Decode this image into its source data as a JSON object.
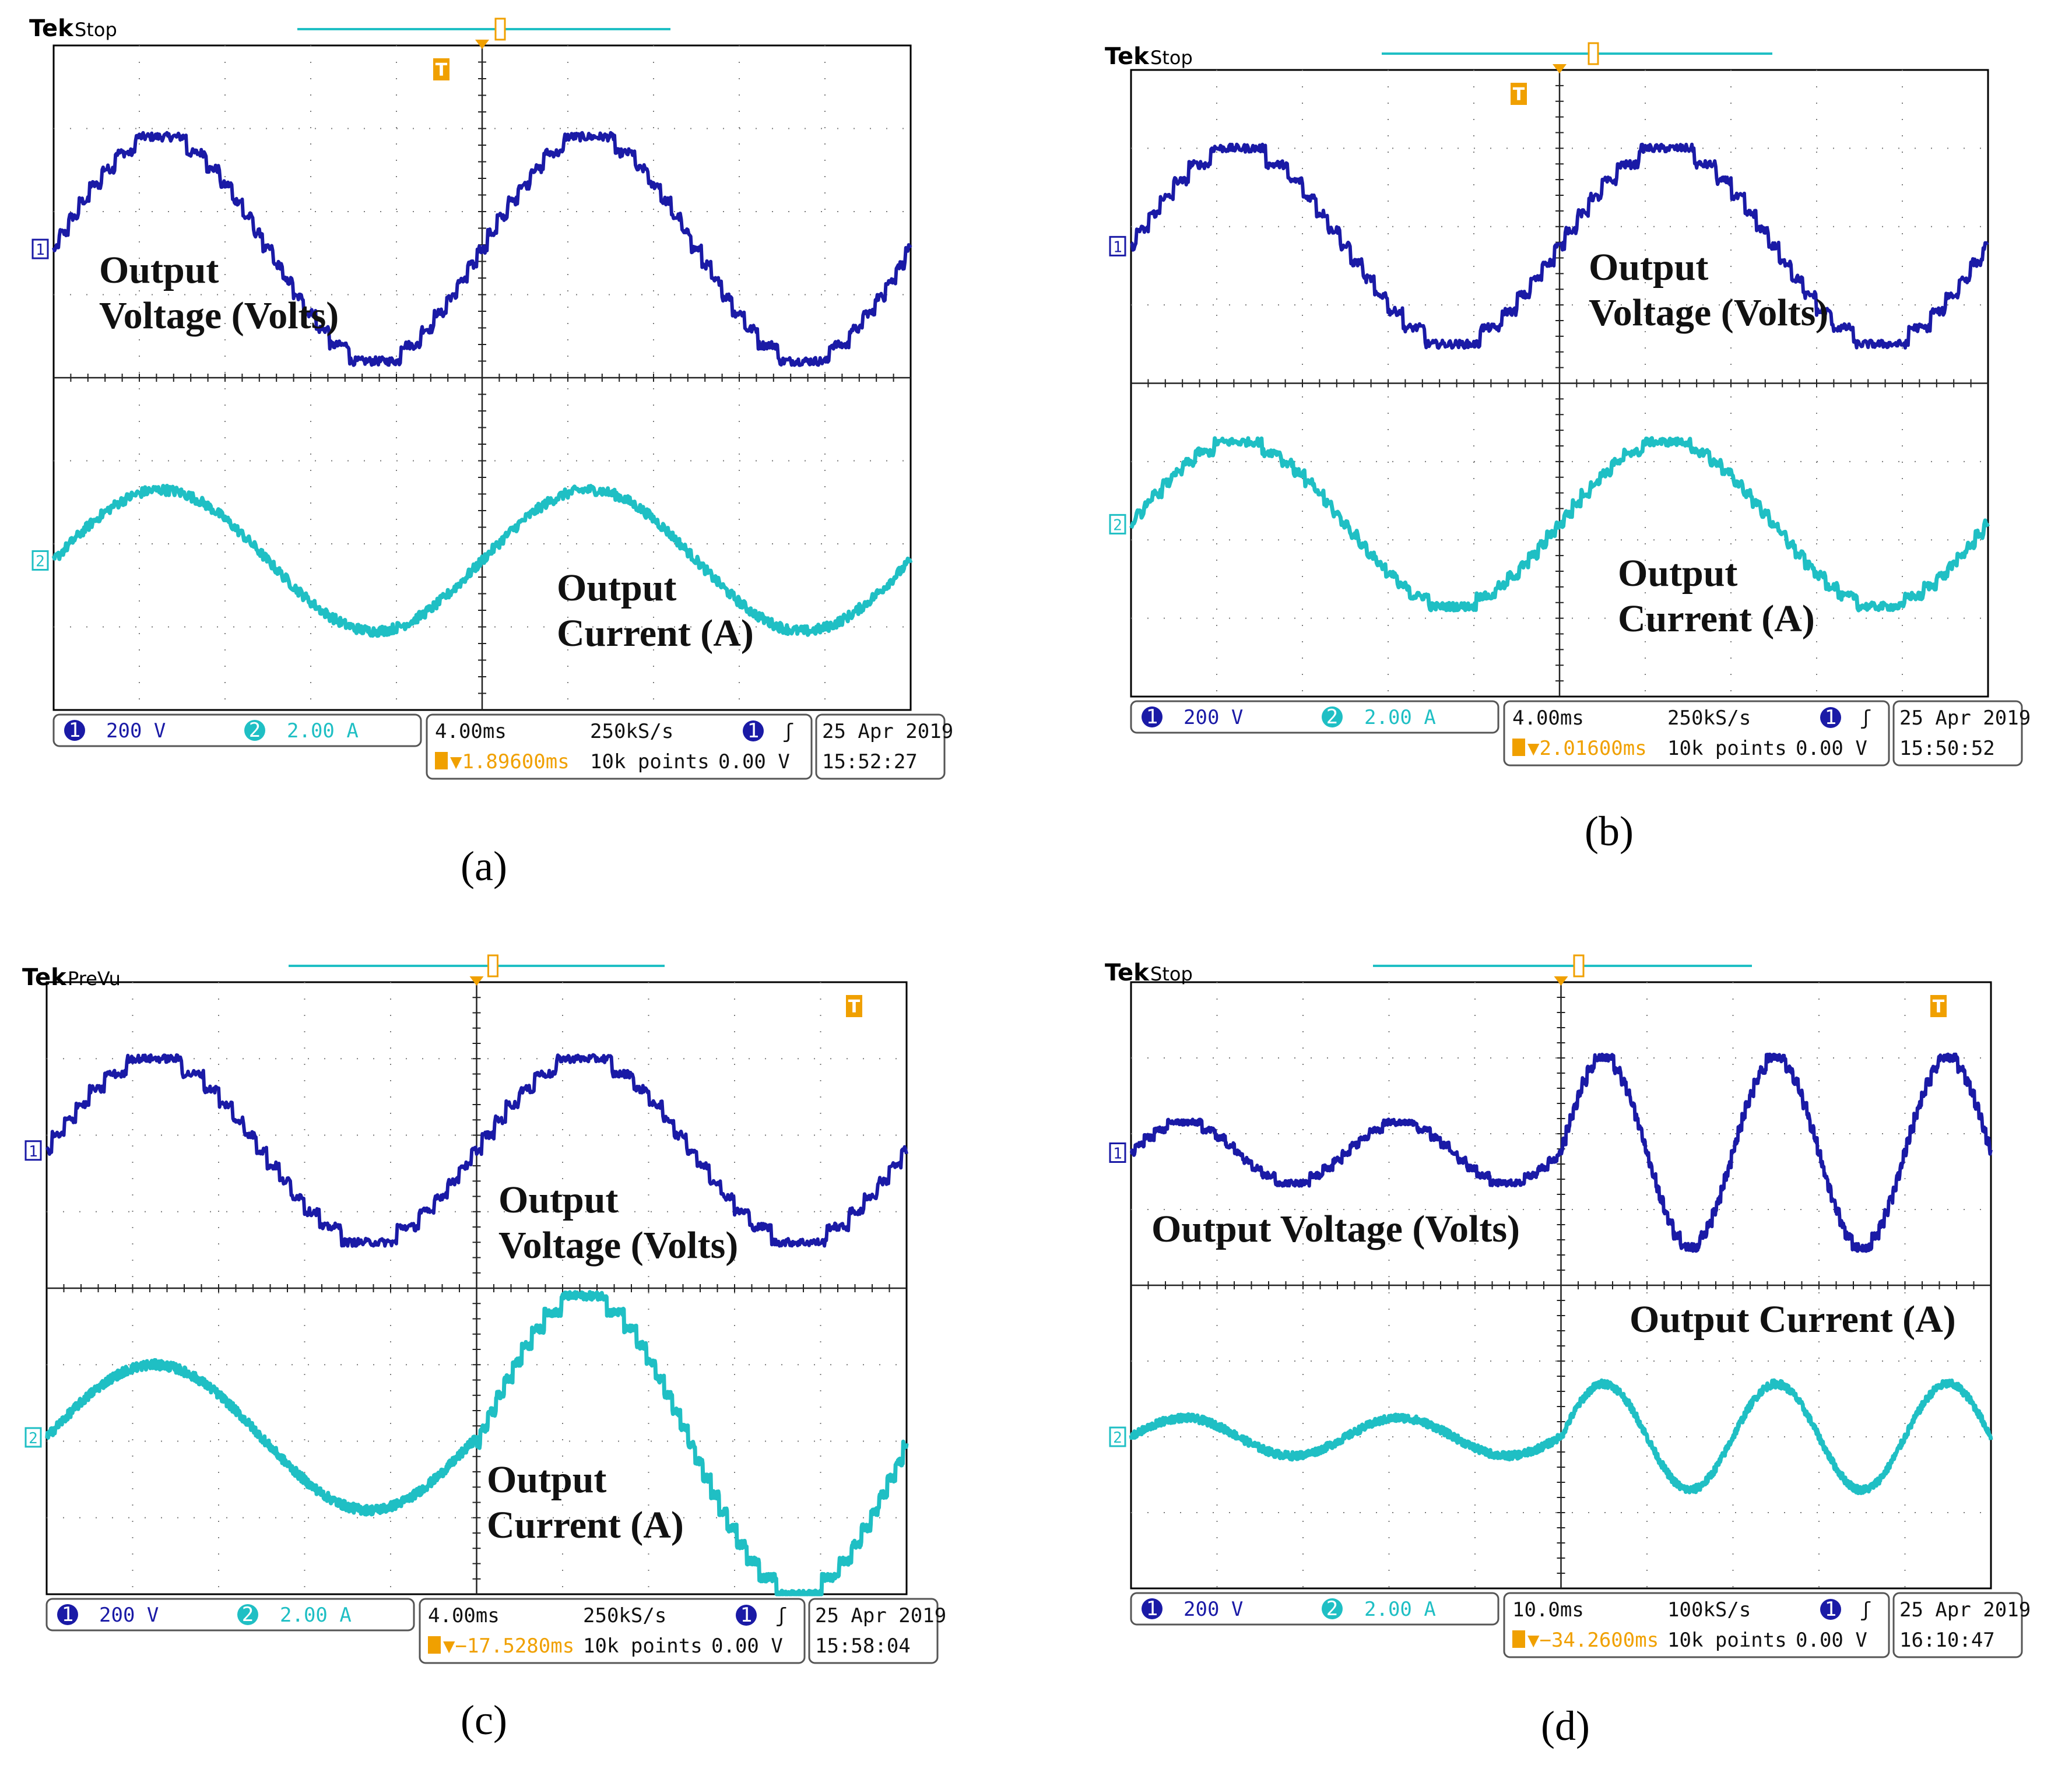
{
  "figure": {
    "colors": {
      "ch1": "#1a1aa6",
      "ch2": "#1fbfc4",
      "trigger": "#f0a000",
      "grid": "#7a7a7a",
      "text": "#111111"
    }
  },
  "chart_data": [
    {
      "type": "line",
      "panel_label": "(a)",
      "title_brand": "Tek",
      "title_status": "Stop",
      "ch1_marker": "1",
      "ch2_marker": "2",
      "trigger_marker": "T",
      "x_divisions": 10,
      "y_divisions": 8,
      "xlim_ms": [
        -20,
        20
      ],
      "series": [
        {
          "name": "Output Voltage (Volts)",
          "label_lines": [
            "Output",
            "Voltage (Volts)"
          ],
          "channel": 1,
          "color": "#1a1aa6",
          "scale": "200 V",
          "frequency_hz": 50,
          "amplitude_div": 1.35,
          "offset_div": 1.55,
          "levels": 7,
          "phase_rad": 0.0,
          "jitter": 0.05
        },
        {
          "name": "Output Current (A)",
          "label_lines": [
            "Output",
            "Current (A)"
          ],
          "channel": 2,
          "color": "#1fbfc4",
          "scale": "2.00 A",
          "frequency_hz": 50,
          "amplitude_div": 0.85,
          "offset_div": -2.2,
          "levels": 0,
          "phase_rad": 0.0,
          "jitter": 0.06
        }
      ],
      "status": {
        "ch1_num": "1",
        "ch1_scale": "200 V",
        "ch2_num": "2",
        "ch2_scale": "2.00 A",
        "timebase": "4.00ms",
        "sample_rate": "250kS/s",
        "trigger_position": "▼1.89600ms",
        "record_length": "10k points",
        "trigger_source": "1",
        "trigger_slope": "ʃ",
        "trigger_level": "0.00 V",
        "date": "25 Apr 2019",
        "time": "15:52:27"
      }
    },
    {
      "type": "line",
      "panel_label": "(b)",
      "title_brand": "Tek",
      "title_status": "Stop",
      "ch1_marker": "1",
      "ch2_marker": "2",
      "trigger_marker": "T",
      "x_divisions": 10,
      "y_divisions": 8,
      "xlim_ms": [
        -20,
        20
      ],
      "series": [
        {
          "name": "Output Voltage (Volts)",
          "label_lines": [
            "Output",
            "Voltage (Volts)"
          ],
          "channel": 1,
          "color": "#1a1aa6",
          "scale": "200 V",
          "frequency_hz": 50,
          "amplitude_div": 1.25,
          "offset_div": 1.75,
          "levels": 6,
          "phase_rad": 0.0,
          "jitter": 0.05
        },
        {
          "name": "Output Current (A)",
          "label_lines": [
            "Output",
            "Current (A)"
          ],
          "channel": 2,
          "color": "#1fbfc4",
          "scale": "2.00 A",
          "frequency_hz": 50,
          "amplitude_div": 1.05,
          "offset_div": -1.8,
          "levels": 8,
          "phase_rad": 0.0,
          "jitter": 0.05
        }
      ],
      "status": {
        "ch1_num": "1",
        "ch1_scale": "200 V",
        "ch2_num": "2",
        "ch2_scale": "2.00 A",
        "timebase": "4.00ms",
        "sample_rate": "250kS/s",
        "trigger_position": "▼2.01600ms",
        "record_length": "10k points",
        "trigger_source": "1",
        "trigger_slope": "ʃ",
        "trigger_level": "0.00 V",
        "date": "25 Apr 2019",
        "time": "15:50:52"
      }
    },
    {
      "type": "line",
      "panel_label": "(c)",
      "title_brand": "Tek",
      "title_status": "PreVu",
      "ch1_marker": "1",
      "ch2_marker": "2",
      "trigger_marker": "T",
      "x_divisions": 10,
      "y_divisions": 8,
      "xlim_ms": [
        -20,
        20
      ],
      "series": [
        {
          "name": "Output Voltage (Volts)",
          "label_lines": [
            "Output",
            "Voltage (Volts)"
          ],
          "channel": 1,
          "color": "#1a1aa6",
          "scale": "200 V",
          "frequency_hz": 50,
          "amplitude_div": 1.2,
          "offset_div": 1.8,
          "levels": 6,
          "phase_rad": 0.0,
          "jitter": 0.05
        },
        {
          "name": "Output Current (A) left",
          "label_lines": [],
          "channel": 2,
          "color": "#1fbfc4",
          "scale": "2.00 A",
          "frequency_hz": 50,
          "amplitude_div": 0.95,
          "offset_div": -1.95,
          "levels": 0,
          "phase_rad": 0.0,
          "jitter": 0.06,
          "x_range_ms": [
            -20,
            0
          ]
        },
        {
          "name": "Output Current (A)",
          "label_lines": [
            "Output",
            "Current (A)"
          ],
          "channel": 2,
          "color": "#1fbfc4",
          "scale": "2.00 A",
          "frequency_hz": 50,
          "amplitude_div": 1.95,
          "offset_div": -2.05,
          "levels": 9,
          "phase_rad": 0.0,
          "jitter": 0.05,
          "x_range_ms": [
            0,
            20
          ]
        }
      ],
      "status": {
        "ch1_num": "1",
        "ch1_scale": "200 V",
        "ch2_num": "2",
        "ch2_scale": "2.00 A",
        "timebase": "4.00ms",
        "sample_rate": "250kS/s",
        "trigger_position": "▼−17.5280ms",
        "record_length": "10k points",
        "trigger_source": "1",
        "trigger_slope": "ʃ",
        "trigger_level": "0.00 V",
        "date": "25 Apr 2019",
        "time": "15:58:04"
      }
    },
    {
      "type": "line",
      "panel_label": "(d)",
      "title_brand": "Tek",
      "title_status": "Stop",
      "ch1_marker": "1",
      "ch2_marker": "2",
      "trigger_marker": "T",
      "x_divisions": 10,
      "y_divisions": 8,
      "xlim_ms": [
        -50,
        50
      ],
      "series": [
        {
          "name": "Output Voltage (Volts) before",
          "label_lines": [],
          "channel": 1,
          "color": "#1a1aa6",
          "scale": "200 V",
          "frequency_hz": 40,
          "amplitude_div": 0.4,
          "offset_div": 1.75,
          "levels": 4,
          "phase_rad": 0.0,
          "jitter": 0.04,
          "x_range_ms": [
            -50,
            0
          ]
        },
        {
          "name": "Output Voltage (Volts)",
          "label_lines": [
            "Output Voltage (Volts)"
          ],
          "channel": 1,
          "color": "#1a1aa6",
          "scale": "200 V",
          "frequency_hz": 50,
          "amplitude_div": 1.25,
          "offset_div": 1.75,
          "levels": 8,
          "phase_rad": 0.0,
          "jitter": 0.05,
          "x_range_ms": [
            0,
            50
          ]
        },
        {
          "name": "Output Current (A) before",
          "label_lines": [],
          "channel": 2,
          "color": "#1fbfc4",
          "scale": "2.00 A",
          "frequency_hz": 40,
          "amplitude_div": 0.25,
          "offset_div": -2.0,
          "levels": 0,
          "phase_rad": 0.0,
          "jitter": 0.05,
          "x_range_ms": [
            -50,
            0
          ]
        },
        {
          "name": "Output Current (A)",
          "label_lines": [
            "Output Current (A)"
          ],
          "channel": 2,
          "color": "#1fbfc4",
          "scale": "2.00 A",
          "frequency_hz": 50,
          "amplitude_div": 0.7,
          "offset_div": -2.0,
          "levels": 0,
          "phase_rad": 0.0,
          "jitter": 0.05,
          "x_range_ms": [
            0,
            50
          ]
        }
      ],
      "status": {
        "ch1_num": "1",
        "ch1_scale": "200 V",
        "ch2_num": "2",
        "ch2_scale": "2.00 A",
        "timebase": "10.0ms",
        "sample_rate": "100kS/s",
        "trigger_position": "▼−34.2600ms",
        "record_length": "10k points",
        "trigger_source": "1",
        "trigger_slope": "ʃ",
        "trigger_level": "0.00 V",
        "date": "25 Apr 2019",
        "time": "16:10:47"
      }
    }
  ]
}
